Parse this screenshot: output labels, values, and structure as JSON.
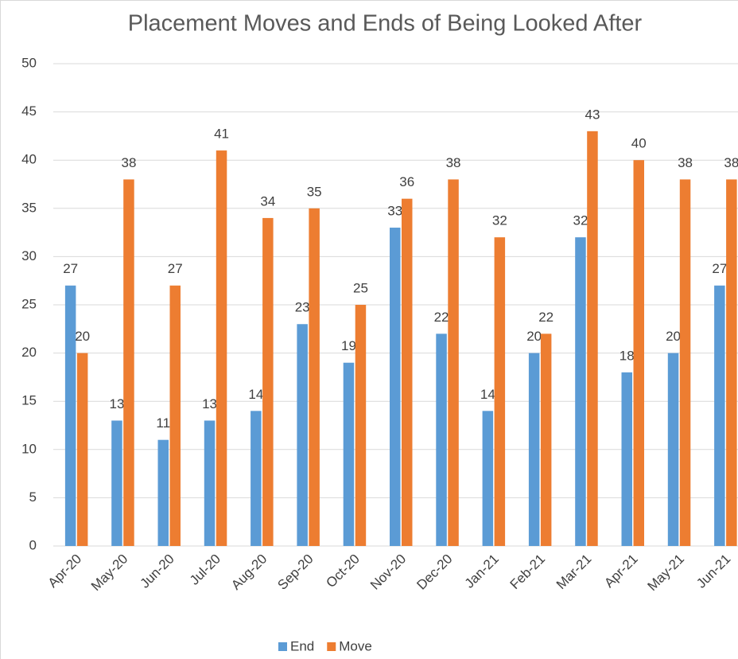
{
  "chart_data": {
    "type": "bar",
    "title": "Placement Moves and Ends of Being Looked After",
    "categories": [
      "Apr-20",
      "May-20",
      "Jun-20",
      "Jul-20",
      "Aug-20",
      "Sep-20",
      "Oct-20",
      "Nov-20",
      "Dec-20",
      "Jan-21",
      "Feb-21",
      "Mar-21",
      "Apr-21",
      "May-21",
      "Jun-21"
    ],
    "series": [
      {
        "name": "End",
        "color": "#5b9bd5",
        "values": [
          27,
          13,
          11,
          13,
          14,
          23,
          19,
          33,
          22,
          14,
          20,
          32,
          18,
          20,
          27
        ]
      },
      {
        "name": "Move",
        "color": "#ed7d31",
        "values": [
          20,
          38,
          27,
          41,
          34,
          35,
          25,
          36,
          38,
          32,
          22,
          43,
          40,
          38,
          38
        ]
      }
    ],
    "ylim": [
      0,
      50
    ],
    "yticks": [
      0,
      5,
      10,
      15,
      20,
      25,
      30,
      35,
      40,
      45,
      50
    ],
    "grid": true,
    "legend": "bottom"
  }
}
